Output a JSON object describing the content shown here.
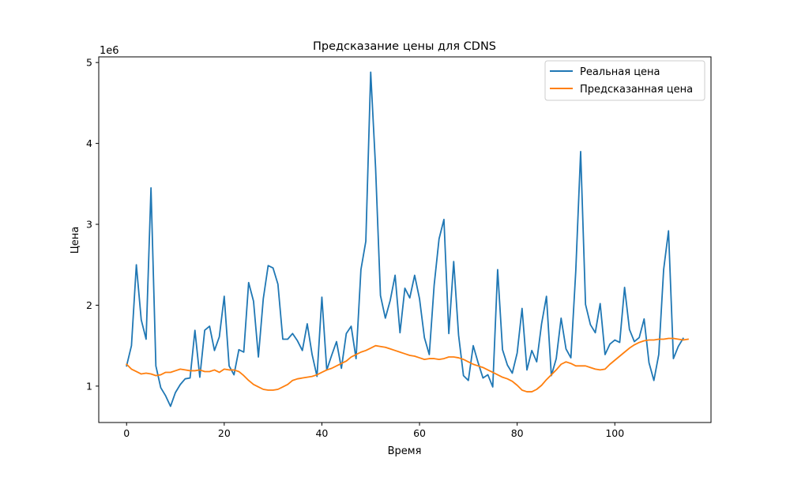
{
  "chart_data": {
    "type": "line",
    "title": "Предсказание цены для CDNS",
    "xlabel": "Время",
    "ylabel": "Цена",
    "y_scale_label": "1e6",
    "xlim": [
      -5.7,
      119.7
    ],
    "ylim": [
      0.55,
      5.07
    ],
    "x_ticks": [
      0,
      20,
      40,
      60,
      80,
      100
    ],
    "x_tick_labels": [
      "0",
      "20",
      "40",
      "60",
      "80",
      "100"
    ],
    "y_ticks": [
      1,
      2,
      3,
      4,
      5
    ],
    "y_tick_labels": [
      "1",
      "2",
      "3",
      "4",
      "5"
    ],
    "grid": false,
    "legend_position": "top-right",
    "series": [
      {
        "name": "Реальная цена",
        "color": "#1f77b4",
        "x_start": 0,
        "values": [
          1.25,
          1.5,
          2.5,
          1.82,
          1.58,
          3.45,
          1.25,
          0.98,
          0.88,
          0.75,
          0.92,
          1.02,
          1.09,
          1.1,
          1.69,
          1.11,
          1.69,
          1.74,
          1.44,
          1.61,
          2.11,
          1.25,
          1.14,
          1.45,
          1.42,
          2.28,
          2.05,
          1.36,
          2.08,
          2.49,
          2.46,
          2.26,
          1.58,
          1.58,
          1.65,
          1.56,
          1.44,
          1.77,
          1.39,
          1.12,
          2.1,
          1.2,
          1.38,
          1.55,
          1.22,
          1.65,
          1.74,
          1.34,
          2.44,
          2.79,
          4.88,
          3.7,
          2.12,
          1.84,
          2.06,
          2.37,
          1.66,
          2.21,
          2.09,
          2.37,
          2.08,
          1.6,
          1.39,
          2.25,
          2.82,
          3.06,
          1.65,
          2.54,
          1.63,
          1.13,
          1.07,
          1.5,
          1.29,
          1.1,
          1.14,
          0.99,
          2.44,
          1.45,
          1.26,
          1.16,
          1.41,
          1.96,
          1.2,
          1.44,
          1.3,
          1.77,
          2.11,
          1.13,
          1.34,
          1.84,
          1.46,
          1.35,
          2.42,
          3.9,
          2.01,
          1.76,
          1.66,
          2.02,
          1.39,
          1.52,
          1.57,
          1.54,
          2.22,
          1.7,
          1.55,
          1.6,
          1.83,
          1.29,
          1.07,
          1.39,
          2.44,
          2.92,
          1.34,
          1.49,
          1.59
        ]
      },
      {
        "name": "Предсказанная цена",
        "color": "#ff7f0e",
        "x_start": 0,
        "values": [
          1.27,
          1.21,
          1.18,
          1.15,
          1.16,
          1.15,
          1.13,
          1.14,
          1.17,
          1.17,
          1.19,
          1.21,
          1.2,
          1.19,
          1.19,
          1.2,
          1.18,
          1.18,
          1.2,
          1.17,
          1.21,
          1.2,
          1.2,
          1.18,
          1.13,
          1.07,
          1.02,
          0.99,
          0.96,
          0.95,
          0.95,
          0.96,
          0.99,
          1.02,
          1.07,
          1.09,
          1.1,
          1.11,
          1.12,
          1.14,
          1.17,
          1.2,
          1.22,
          1.25,
          1.28,
          1.31,
          1.36,
          1.39,
          1.42,
          1.44,
          1.47,
          1.5,
          1.49,
          1.48,
          1.46,
          1.44,
          1.42,
          1.4,
          1.38,
          1.37,
          1.35,
          1.33,
          1.34,
          1.34,
          1.33,
          1.34,
          1.36,
          1.36,
          1.35,
          1.33,
          1.3,
          1.27,
          1.25,
          1.23,
          1.2,
          1.17,
          1.14,
          1.11,
          1.09,
          1.06,
          1.01,
          0.95,
          0.93,
          0.93,
          0.96,
          1.01,
          1.08,
          1.14,
          1.2,
          1.27,
          1.3,
          1.28,
          1.25,
          1.25,
          1.25,
          1.23,
          1.21,
          1.2,
          1.21,
          1.27,
          1.32,
          1.37,
          1.42,
          1.47,
          1.51,
          1.54,
          1.56,
          1.57,
          1.57,
          1.58,
          1.58,
          1.59,
          1.59,
          1.58,
          1.57,
          1.58
        ]
      }
    ]
  }
}
